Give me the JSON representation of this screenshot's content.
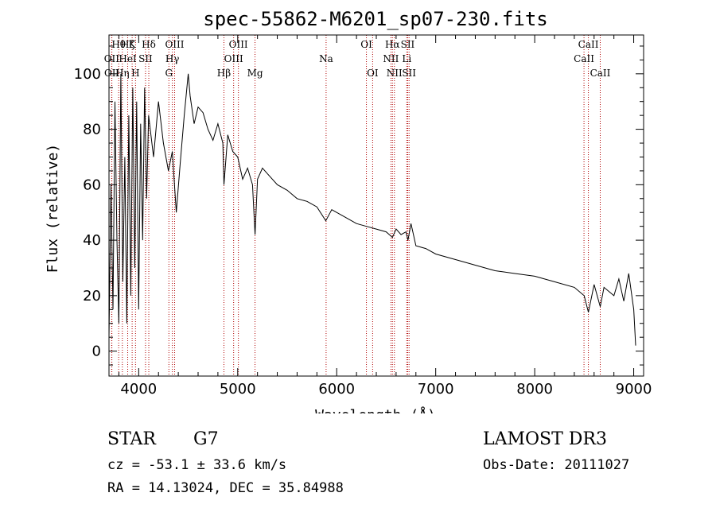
{
  "colors": {
    "spectrum": "#000000",
    "line_marker": "#b00000",
    "frame": "#000000"
  },
  "chart_data": {
    "type": "line",
    "title": "spec-55862-M6201_sp07-230.fits",
    "xlabel": "Wavelength (Å)",
    "ylabel": "Flux (relative)",
    "xlim": [
      3700,
      9100
    ],
    "ylim": [
      -9,
      114
    ],
    "xticks": [
      4000,
      5000,
      6000,
      7000,
      8000,
      9000
    ],
    "yticks": [
      0,
      20,
      40,
      60,
      80,
      100
    ],
    "series": [
      {
        "name": "spectrum",
        "x": [
          3700,
          3720,
          3740,
          3760,
          3780,
          3800,
          3820,
          3840,
          3860,
          3880,
          3900,
          3920,
          3940,
          3960,
          3980,
          4000,
          4020,
          4040,
          4060,
          4080,
          4100,
          4150,
          4200,
          4250,
          4300,
          4340,
          4380,
          4420,
          4460,
          4500,
          4520,
          4560,
          4600,
          4650,
          4700,
          4750,
          4800,
          4850,
          4861,
          4900,
          4950,
          5000,
          5050,
          5100,
          5150,
          5175,
          5200,
          5250,
          5300,
          5400,
          5500,
          5600,
          5700,
          5800,
          5890,
          5950,
          6000,
          6100,
          6200,
          6300,
          6400,
          6500,
          6563,
          6600,
          6650,
          6700,
          6720,
          6750,
          6800,
          6900,
          7000,
          7200,
          7400,
          7600,
          7800,
          8000,
          8200,
          8400,
          8500,
          8542,
          8600,
          8662,
          8700,
          8800,
          8850,
          8900,
          8950,
          9000,
          9020
        ],
        "y": [
          5,
          60,
          15,
          90,
          40,
          10,
          100,
          25,
          70,
          10,
          85,
          20,
          95,
          30,
          90,
          15,
          82,
          40,
          95,
          55,
          85,
          70,
          90,
          75,
          65,
          72,
          50,
          68,
          85,
          100,
          92,
          82,
          88,
          86,
          80,
          76,
          82,
          75,
          60,
          78,
          72,
          70,
          62,
          66,
          60,
          42,
          62,
          66,
          64,
          60,
          58,
          55,
          54,
          52,
          47,
          51,
          50,
          48,
          46,
          45,
          44,
          43,
          41,
          44,
          42,
          43,
          40,
          46,
          38,
          37,
          35,
          33,
          31,
          29,
          28,
          27,
          25,
          23,
          20,
          14,
          24,
          16,
          23,
          20,
          26,
          18,
          28,
          15,
          2
        ]
      }
    ],
    "spectral_lines": [
      {
        "label": "Hθ",
        "x": 3798,
        "row": 0
      },
      {
        "label": "OII",
        "x": 3727,
        "row": 1
      },
      {
        "label": "OII",
        "x": 3729,
        "row": 2
      },
      {
        "label": "Hζ",
        "x": 3889,
        "row": 0
      },
      {
        "label": "HeI",
        "x": 3889,
        "row": 1
      },
      {
        "label": "Hη",
        "x": 3835,
        "row": 2
      },
      {
        "label": "K",
        "x": 3934,
        "row": 0
      },
      {
        "label": "SII",
        "x": 4069,
        "row": 1
      },
      {
        "label": "H",
        "x": 3968,
        "row": 2
      },
      {
        "label": "Hδ",
        "x": 4102,
        "row": 0
      },
      {
        "label": "OIII",
        "x": 4363,
        "row": 0
      },
      {
        "label": "Hγ",
        "x": 4340,
        "row": 1
      },
      {
        "label": "G",
        "x": 4305,
        "row": 2
      },
      {
        "label": "Hβ",
        "x": 4861,
        "row": 2
      },
      {
        "label": "OIII",
        "x": 5007,
        "row": 0
      },
      {
        "label": "OIII",
        "x": 4959,
        "row": 1
      },
      {
        "label": "Mg",
        "x": 5175,
        "row": 2
      },
      {
        "label": "Na",
        "x": 5893,
        "row": 1
      },
      {
        "label": "OI",
        "x": 6300,
        "row": 0
      },
      {
        "label": "OI",
        "x": 6363,
        "row": 2
      },
      {
        "label": "Hα",
        "x": 6563,
        "row": 0
      },
      {
        "label": "NII",
        "x": 6548,
        "row": 1
      },
      {
        "label": "NII",
        "x": 6583,
        "row": 2
      },
      {
        "label": "SII",
        "x": 6717,
        "row": 0
      },
      {
        "label": "Li",
        "x": 6708,
        "row": 1
      },
      {
        "label": "SII",
        "x": 6731,
        "row": 2
      },
      {
        "label": "CaII",
        "x": 8542,
        "row": 0
      },
      {
        "label": "CaII",
        "x": 8498,
        "row": 1
      },
      {
        "label": "CaII",
        "x": 8662,
        "row": 2
      }
    ]
  },
  "info": {
    "class": "STAR",
    "subclass": "G7",
    "survey": "LAMOST DR3",
    "cz": "cz = -53.1 ± 33.6 km/s",
    "obs_date": "Obs-Date: 20111027",
    "coords": "RA =  14.13024, DEC =  35.84988"
  }
}
